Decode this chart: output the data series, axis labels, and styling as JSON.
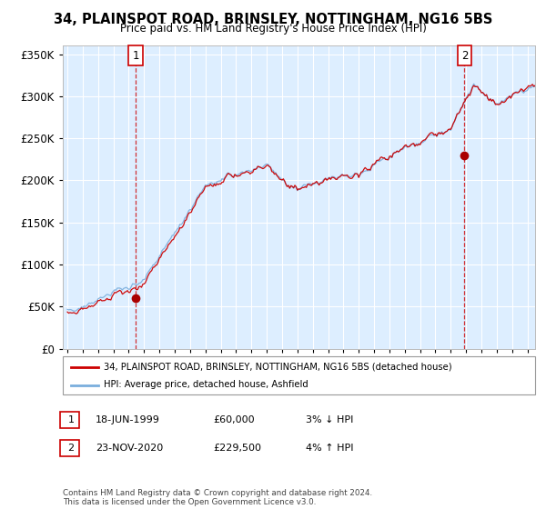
{
  "title": "34, PLAINSPOT ROAD, BRINSLEY, NOTTINGHAM, NG16 5BS",
  "subtitle": "Price paid vs. HM Land Registry's House Price Index (HPI)",
  "legend_line1": "34, PLAINSPOT ROAD, BRINSLEY, NOTTINGHAM, NG16 5BS (detached house)",
  "legend_line2": "HPI: Average price, detached house, Ashfield",
  "annotation1_label": "1",
  "annotation1_date": "18-JUN-1999",
  "annotation1_price": "£60,000",
  "annotation1_hpi": "3% ↓ HPI",
  "annotation2_label": "2",
  "annotation2_date": "23-NOV-2020",
  "annotation2_price": "£229,500",
  "annotation2_hpi": "4% ↑ HPI",
  "footer": "Contains HM Land Registry data © Crown copyright and database right 2024.\nThis data is licensed under the Open Government Licence v3.0.",
  "sale1_year": 1999.46,
  "sale1_price": 60000,
  "sale2_year": 2020.9,
  "sale2_price": 229500,
  "hpi_color": "#7aaedd",
  "price_color": "#cc0000",
  "sale_dot_color": "#aa0000",
  "annotation_box_color": "#cc0000",
  "ylim_min": 0,
  "ylim_max": 360000,
  "xlim_min": 1994.7,
  "xlim_max": 2025.5,
  "plot_bg_color": "#ddeeff",
  "background_color": "#ffffff",
  "grid_color": "#ffffff"
}
